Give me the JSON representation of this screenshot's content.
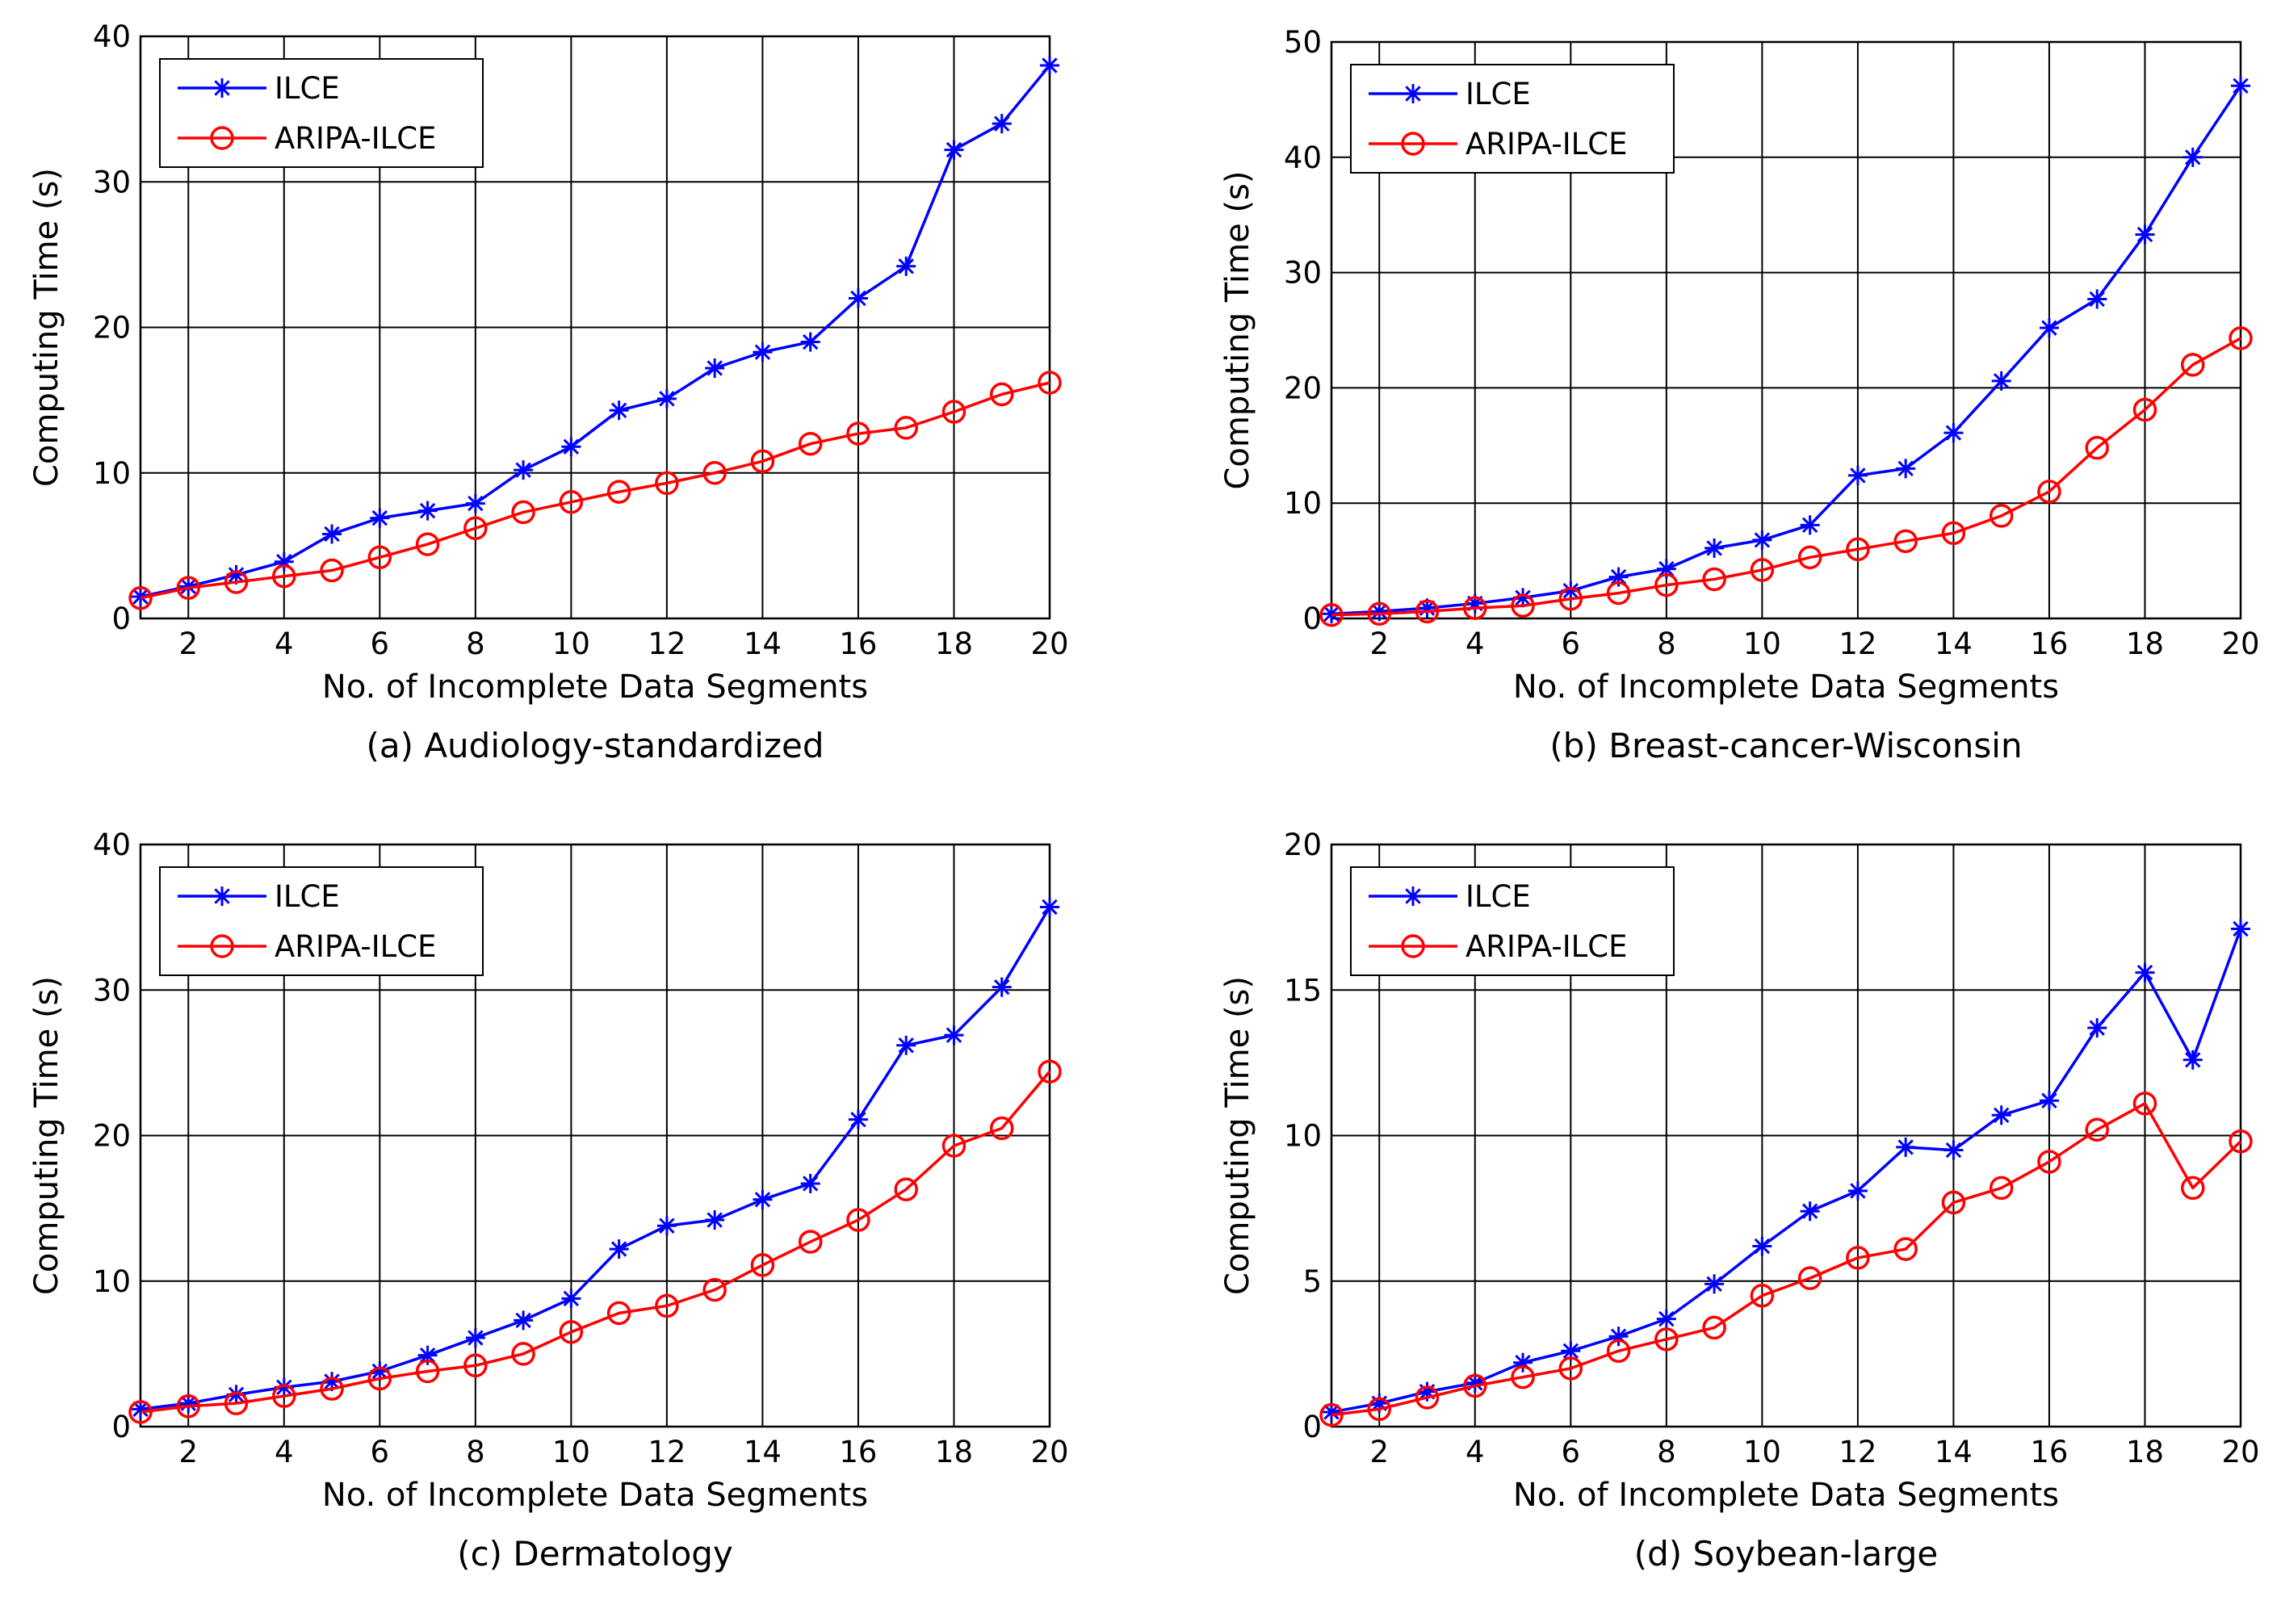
{
  "chart_data": [
    {
      "type": "line",
      "caption": "(a) Audiology-standardized",
      "xlabel": "No. of Incomplete Data Segments",
      "ylabel": "Computing Time (s)",
      "xlim": [
        1,
        20
      ],
      "ylim": [
        0,
        40
      ],
      "xticks": [
        2,
        4,
        6,
        8,
        10,
        12,
        14,
        16,
        18,
        20
      ],
      "yticks": [
        0,
        10,
        20,
        30,
        40
      ],
      "grid": true,
      "legend": "top-left",
      "x": [
        1,
        2,
        3,
        4,
        5,
        6,
        7,
        8,
        9,
        10,
        11,
        12,
        13,
        14,
        15,
        16,
        17,
        18,
        19,
        20
      ],
      "series": [
        {
          "name": "ILCE",
          "color": "#0000ff",
          "marker": "asterisk",
          "values": [
            1.5,
            2.2,
            3.0,
            3.9,
            5.8,
            6.9,
            7.4,
            7.9,
            10.2,
            11.8,
            14.3,
            15.1,
            17.2,
            18.3,
            19.0,
            22.0,
            24.2,
            32.2,
            34.0,
            38.0
          ]
        },
        {
          "name": "ARIPA-ILCE",
          "color": "#ff0000",
          "marker": "circle",
          "values": [
            1.4,
            2.1,
            2.5,
            2.9,
            3.3,
            4.2,
            5.1,
            6.2,
            7.3,
            8.0,
            8.7,
            9.3,
            10.0,
            10.8,
            12.0,
            12.7,
            13.1,
            14.2,
            15.4,
            16.2
          ]
        }
      ]
    },
    {
      "type": "line",
      "caption": "(b) Breast-cancer-Wisconsin",
      "xlabel": "No. of Incomplete Data Segments",
      "ylabel": "Computing Time (s)",
      "xlim": [
        1,
        20
      ],
      "ylim": [
        0,
        50
      ],
      "xticks": [
        2,
        4,
        6,
        8,
        10,
        12,
        14,
        16,
        18,
        20
      ],
      "yticks": [
        0,
        10,
        20,
        30,
        40,
        50
      ],
      "grid": true,
      "legend": "top-left",
      "x": [
        1,
        2,
        3,
        4,
        5,
        6,
        7,
        8,
        9,
        10,
        11,
        12,
        13,
        14,
        15,
        16,
        17,
        18,
        19,
        20
      ],
      "series": [
        {
          "name": "ILCE",
          "color": "#0000ff",
          "marker": "asterisk",
          "values": [
            0.4,
            0.6,
            0.9,
            1.3,
            1.8,
            2.4,
            3.6,
            4.3,
            6.1,
            6.8,
            8.1,
            12.4,
            13.0,
            16.1,
            20.6,
            25.2,
            27.7,
            33.3,
            40.0,
            46.2
          ]
        },
        {
          "name": "ARIPA-ILCE",
          "color": "#ff0000",
          "marker": "circle",
          "values": [
            0.3,
            0.4,
            0.6,
            0.9,
            1.1,
            1.7,
            2.2,
            2.9,
            3.4,
            4.2,
            5.3,
            6.0,
            6.7,
            7.4,
            8.9,
            11.0,
            14.8,
            18.1,
            22.0,
            24.3
          ]
        }
      ]
    },
    {
      "type": "line",
      "caption": "(c) Dermatology",
      "xlabel": "No. of Incomplete Data Segments",
      "ylabel": "Computing Time (s)",
      "xlim": [
        1,
        20
      ],
      "ylim": [
        0,
        40
      ],
      "xticks": [
        2,
        4,
        6,
        8,
        10,
        12,
        14,
        16,
        18,
        20
      ],
      "yticks": [
        0,
        10,
        20,
        30,
        40
      ],
      "grid": true,
      "legend": "top-left",
      "x": [
        1,
        2,
        3,
        4,
        5,
        6,
        7,
        8,
        9,
        10,
        11,
        12,
        13,
        14,
        15,
        16,
        17,
        18,
        19,
        20
      ],
      "series": [
        {
          "name": "ILCE",
          "color": "#0000ff",
          "marker": "asterisk",
          "values": [
            1.2,
            1.6,
            2.2,
            2.7,
            3.1,
            3.8,
            4.9,
            6.1,
            7.3,
            8.8,
            12.2,
            13.8,
            14.2,
            15.6,
            16.7,
            21.1,
            26.2,
            26.9,
            30.2,
            35.7
          ]
        },
        {
          "name": "ARIPA-ILCE",
          "color": "#ff0000",
          "marker": "circle",
          "values": [
            1.0,
            1.4,
            1.6,
            2.1,
            2.6,
            3.3,
            3.8,
            4.2,
            5.0,
            6.5,
            7.8,
            8.3,
            9.4,
            11.1,
            12.7,
            14.2,
            16.3,
            19.3,
            20.5,
            24.4
          ]
        }
      ]
    },
    {
      "type": "line",
      "caption": "(d) Soybean-large",
      "xlabel": "No. of Incomplete Data Segments",
      "ylabel": "Computing Time (s)",
      "xlim": [
        1,
        20
      ],
      "ylim": [
        0,
        20
      ],
      "xticks": [
        2,
        4,
        6,
        8,
        10,
        12,
        14,
        16,
        18,
        20
      ],
      "yticks": [
        0,
        5,
        10,
        15,
        20
      ],
      "grid": true,
      "legend": "top-left",
      "x": [
        1,
        2,
        3,
        4,
        5,
        6,
        7,
        8,
        9,
        10,
        11,
        12,
        13,
        14,
        15,
        16,
        17,
        18,
        19,
        20
      ],
      "series": [
        {
          "name": "ILCE",
          "color": "#0000ff",
          "marker": "asterisk",
          "values": [
            0.5,
            0.8,
            1.2,
            1.5,
            2.2,
            2.6,
            3.1,
            3.7,
            4.9,
            6.2,
            7.4,
            8.1,
            9.6,
            9.5,
            10.7,
            11.2,
            13.7,
            15.6,
            12.6,
            17.1
          ]
        },
        {
          "name": "ARIPA-ILCE",
          "color": "#ff0000",
          "marker": "circle",
          "values": [
            0.4,
            0.6,
            1.0,
            1.4,
            1.7,
            2.0,
            2.6,
            3.0,
            3.4,
            4.5,
            5.1,
            5.8,
            6.1,
            7.7,
            8.2,
            9.1,
            10.2,
            11.1,
            8.2,
            9.8
          ]
        }
      ]
    }
  ]
}
